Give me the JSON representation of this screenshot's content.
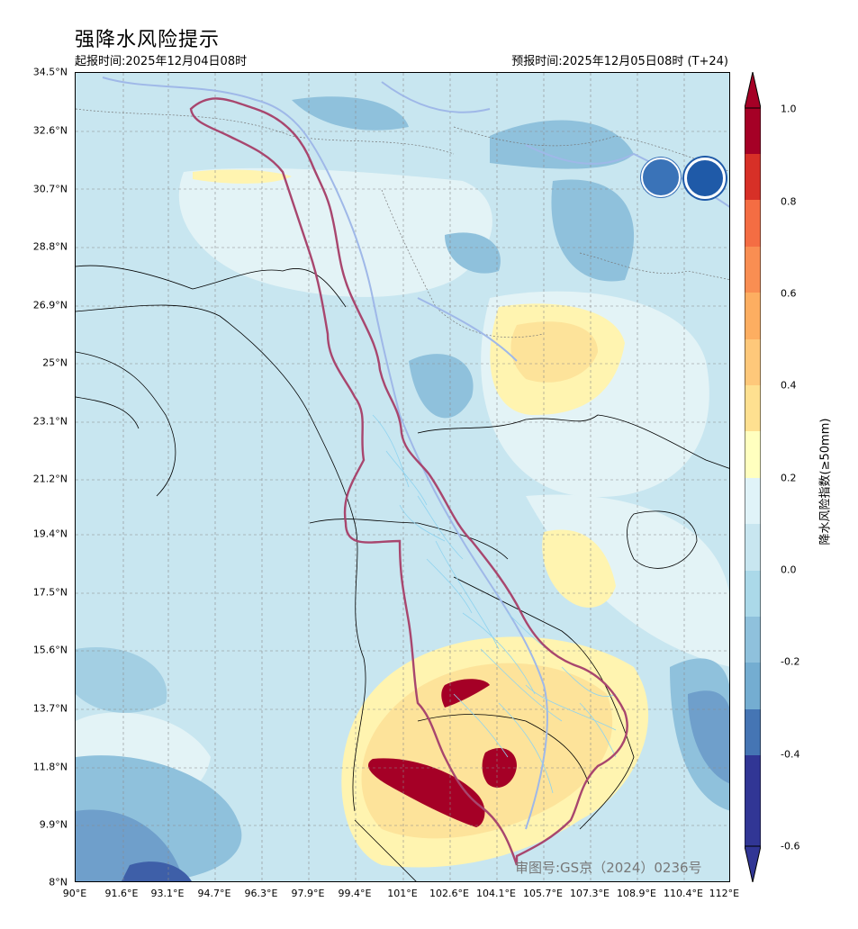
{
  "header": {
    "title": "强降水风险提示",
    "issue_time": "起报时间:2025年12月04日08时",
    "valid_time": "预报时间:2025年12月05日08时 (T+24)"
  },
  "map": {
    "lat_labels": [
      "34.5°N",
      "32.6°N",
      "30.7°N",
      "28.8°N",
      "26.9°N",
      "25°N",
      "23.1°N",
      "21.2°N",
      "19.4°N",
      "17.5°N",
      "15.6°N",
      "13.7°N",
      "11.8°N",
      "9.9°N",
      "8°N"
    ],
    "lon_labels": [
      "90°E",
      "91.6°E",
      "93.1°E",
      "94.7°E",
      "96.3°E",
      "97.9°E",
      "99.4°E",
      "101°E",
      "102.6°E",
      "104.1°E",
      "105.7°E",
      "107.3°E",
      "108.9°E",
      "110.4°E",
      "112°E"
    ],
    "watermark": "审图号:GS京（2024）0236号",
    "colors": {
      "background": "#c8e6f0",
      "basin_outline": "#a8466e",
      "rivers": "#8fd3ef",
      "high_risk": "#a50026"
    }
  },
  "colorbar": {
    "label": "降水风险指数(≥50mm)",
    "ticks": [
      "1.0",
      "0.8",
      "0.6",
      "0.4",
      "0.2",
      "0.0",
      "-0.2",
      "-0.4",
      "-0.6"
    ],
    "colors": [
      "#a50026",
      "#d73027",
      "#f46d43",
      "#fdae61",
      "#fee090",
      "#ffffbf",
      "#e0f3f8",
      "#abd9e9",
      "#74add1",
      "#4575b4",
      "#313695"
    ]
  },
  "logos": [
    "wmo-logo",
    "cma-logo"
  ]
}
